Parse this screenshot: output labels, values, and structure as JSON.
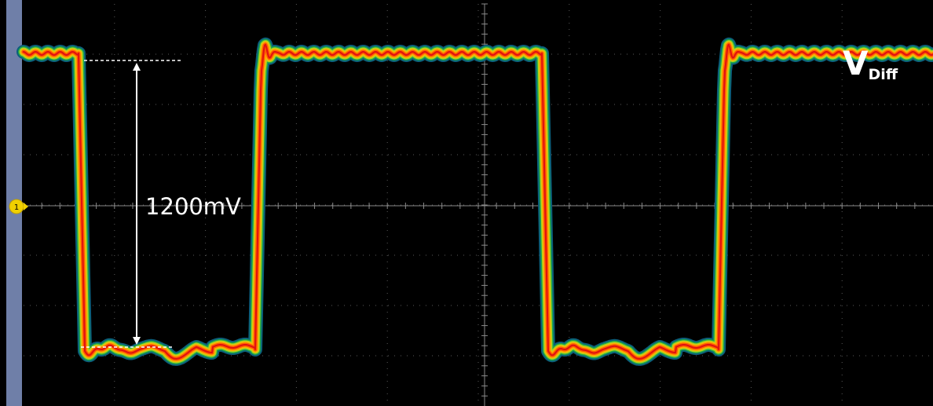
{
  "annotation": "1200mV",
  "signal_label": {
    "main": "V",
    "subscript": "Diff"
  },
  "channel_marker": "1"
}
